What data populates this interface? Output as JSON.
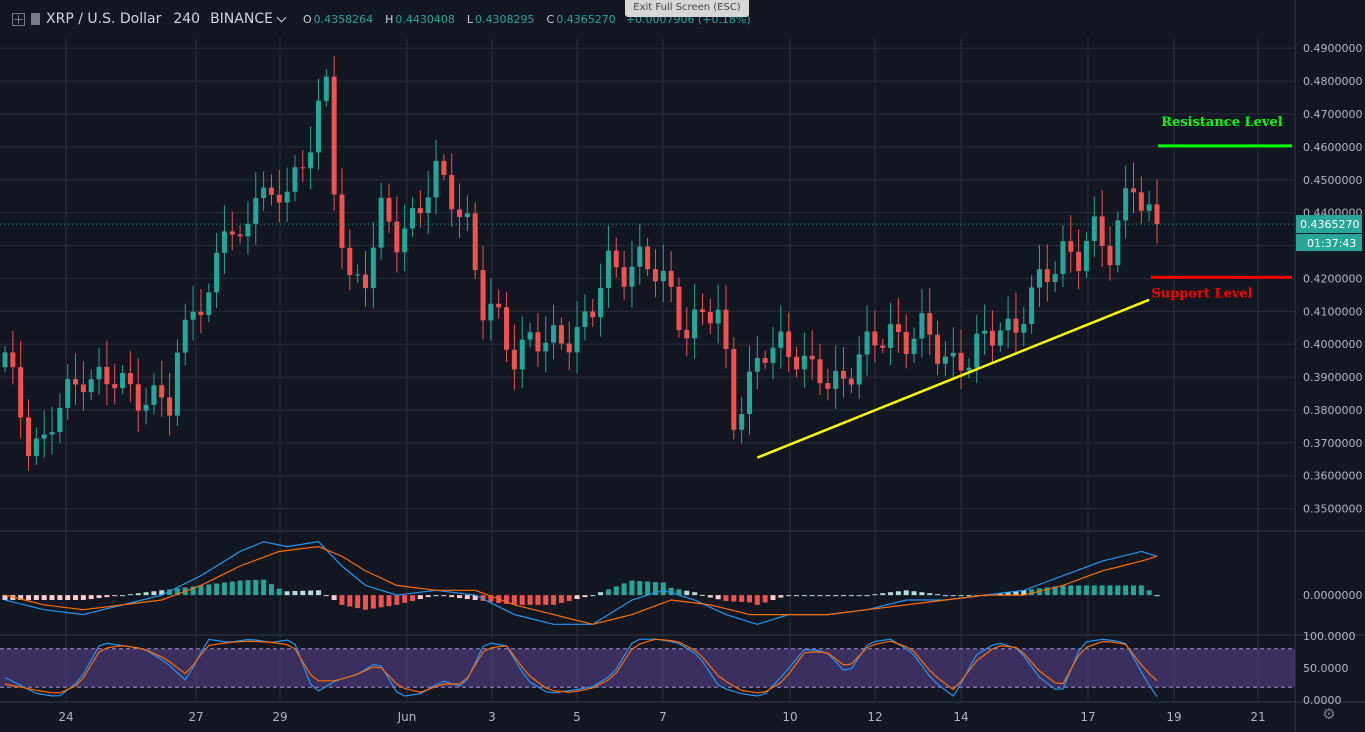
{
  "header": {
    "symbol": "XRP / U.S. Dollar",
    "interval": "240",
    "exchange": "BINANCE",
    "open_label": "O",
    "open": "0.4358264",
    "high_label": "H",
    "high": "0.4430408",
    "low_label": "L",
    "low": "0.4308295",
    "close_label": "C",
    "close": "0.4365270",
    "change": "+0.0007906 (+0.18%)"
  },
  "fullscreen_banner": "Exit Full Screen (ESC)",
  "last_price": "0.4365270",
  "countdown": "01:37:43",
  "colors": {
    "background": "#131722",
    "grid": "#2a2e39",
    "up": "#26a69a",
    "down": "#ef5350",
    "resistance": "#00ff00",
    "support": "#ff0000",
    "trendline": "#ffff00",
    "macd_line": "#2196f3",
    "signal_line": "#ff6d00",
    "stoch_band": "#7e57c2"
  },
  "icons": [
    "add-symbol-icon",
    "series-square-icon",
    "dropdown-chevron-icon",
    "settings-gear-icon"
  ],
  "chart_data": [
    {
      "type": "candlestick",
      "title": "XRP / U.S. Dollar 240 BINANCE",
      "x_ticks": [
        "24",
        "27",
        "29",
        "Jun",
        "3",
        "5",
        "7",
        "10",
        "12",
        "14",
        "17",
        "19",
        "21"
      ],
      "y_ticks": [
        "0.4900000",
        "0.4800000",
        "0.4700000",
        "0.4600000",
        "0.4500000",
        "0.4400000",
        "0.4300000",
        "0.4200000",
        "0.4100000",
        "0.4000000",
        "0.3900000",
        "0.3800000",
        "0.3700000",
        "0.3600000",
        "0.3500000"
      ],
      "ylim": [
        0.3435,
        0.4925
      ],
      "close_path": [
        [
          0,
          0.395
        ],
        [
          3,
          0.372
        ],
        [
          5,
          0.37
        ],
        [
          7,
          0.38
        ],
        [
          10,
          0.392
        ],
        [
          13,
          0.388
        ],
        [
          17,
          0.386
        ],
        [
          20,
          0.382
        ],
        [
          21,
          0.38
        ],
        [
          22,
          0.395
        ],
        [
          24,
          0.415
        ],
        [
          26,
          0.412
        ],
        [
          28,
          0.436
        ],
        [
          30,
          0.43
        ],
        [
          32,
          0.45
        ],
        [
          34,
          0.44
        ],
        [
          36,
          0.448
        ],
        [
          38,
          0.455
        ],
        [
          40,
          0.473
        ],
        [
          41,
          0.475
        ],
        [
          42,
          0.445
        ],
        [
          44,
          0.42
        ],
        [
          46,
          0.422
        ],
        [
          48,
          0.438
        ],
        [
          50,
          0.432
        ],
        [
          52,
          0.44
        ],
        [
          55,
          0.45
        ],
        [
          57,
          0.445
        ],
        [
          59,
          0.438
        ],
        [
          61,
          0.41
        ],
        [
          63,
          0.406
        ],
        [
          65,
          0.397
        ],
        [
          67,
          0.403
        ],
        [
          69,
          0.398
        ],
        [
          71,
          0.402
        ],
        [
          73,
          0.405
        ],
        [
          75,
          0.41
        ],
        [
          77,
          0.423
        ],
        [
          79,
          0.424
        ],
        [
          81,
          0.426
        ],
        [
          83,
          0.42
        ],
        [
          85,
          0.416
        ],
        [
          87,
          0.405
        ],
        [
          89,
          0.408
        ],
        [
          91,
          0.408
        ],
        [
          92,
          0.396
        ],
        [
          93,
          0.379
        ],
        [
          95,
          0.388
        ],
        [
          97,
          0.396
        ],
        [
          99,
          0.401
        ],
        [
          101,
          0.398
        ],
        [
          103,
          0.39
        ],
        [
          105,
          0.388
        ],
        [
          107,
          0.391
        ],
        [
          109,
          0.396
        ],
        [
          111,
          0.399
        ],
        [
          113,
          0.405
        ],
        [
          115,
          0.402
        ],
        [
          117,
          0.403
        ],
        [
          119,
          0.398
        ],
        [
          121,
          0.396
        ],
        [
          123,
          0.395
        ],
        [
          125,
          0.4
        ],
        [
          127,
          0.407
        ],
        [
          129,
          0.405
        ],
        [
          131,
          0.413
        ],
        [
          133,
          0.422
        ],
        [
          135,
          0.43
        ],
        [
          137,
          0.425
        ],
        [
          139,
          0.433
        ],
        [
          141,
          0.43
        ],
        [
          143,
          0.445
        ],
        [
          144,
          0.448
        ],
        [
          145,
          0.44
        ],
        [
          146,
          0.437
        ],
        [
          147,
          0.4365
        ]
      ],
      "annotations": [
        {
          "text": "Resistance Level",
          "price": 0.4603,
          "x_from": 145,
          "x_to": 162
        },
        {
          "text": "Support Level",
          "price": 0.4203,
          "x_from": 144,
          "x_to": 162
        },
        {
          "text": "",
          "kind": "trendline",
          "from": [
            96,
            0.3655
          ],
          "to": [
            146,
            0.4135
          ]
        }
      ]
    },
    {
      "type": "macd",
      "y_ticks": [
        "0.0000000"
      ],
      "macd_path": [
        [
          0,
          -0.001
        ],
        [
          5,
          -0.003
        ],
        [
          10,
          -0.004
        ],
        [
          15,
          -0.002
        ],
        [
          20,
          0.0
        ],
        [
          25,
          0.004
        ],
        [
          30,
          0.009
        ],
        [
          33,
          0.011
        ],
        [
          36,
          0.01
        ],
        [
          40,
          0.011
        ],
        [
          43,
          0.006
        ],
        [
          46,
          0.002
        ],
        [
          50,
          0.0
        ],
        [
          55,
          0.001
        ],
        [
          60,
          0.0
        ],
        [
          65,
          -0.004
        ],
        [
          70,
          -0.006
        ],
        [
          75,
          -0.006
        ],
        [
          80,
          -0.001
        ],
        [
          84,
          0.001
        ],
        [
          88,
          -0.001
        ],
        [
          92,
          -0.004
        ],
        [
          96,
          -0.006
        ],
        [
          100,
          -0.004
        ],
        [
          105,
          -0.004
        ],
        [
          110,
          -0.003
        ],
        [
          115,
          -0.001
        ],
        [
          120,
          -0.001
        ],
        [
          125,
          0.0
        ],
        [
          130,
          0.001
        ],
        [
          135,
          0.004
        ],
        [
          140,
          0.007
        ],
        [
          145,
          0.009
        ],
        [
          147,
          0.008
        ]
      ],
      "signal_path": [
        [
          0,
          0.0
        ],
        [
          5,
          -0.002
        ],
        [
          10,
          -0.003
        ],
        [
          15,
          -0.002
        ],
        [
          20,
          -0.001
        ],
        [
          25,
          0.002
        ],
        [
          30,
          0.006
        ],
        [
          35,
          0.009
        ],
        [
          40,
          0.01
        ],
        [
          43,
          0.008
        ],
        [
          46,
          0.005
        ],
        [
          50,
          0.002
        ],
        [
          55,
          0.001
        ],
        [
          60,
          0.001
        ],
        [
          65,
          -0.002
        ],
        [
          70,
          -0.004
        ],
        [
          75,
          -0.006
        ],
        [
          80,
          -0.004
        ],
        [
          85,
          -0.001
        ],
        [
          90,
          -0.002
        ],
        [
          95,
          -0.004
        ],
        [
          100,
          -0.004
        ],
        [
          105,
          -0.004
        ],
        [
          110,
          -0.003
        ],
        [
          115,
          -0.002
        ],
        [
          120,
          -0.001
        ],
        [
          125,
          0.0
        ],
        [
          130,
          0.0
        ],
        [
          135,
          0.002
        ],
        [
          140,
          0.005
        ],
        [
          145,
          0.007
        ],
        [
          147,
          0.008
        ]
      ],
      "ylim": [
        -0.008,
        0.013
      ]
    },
    {
      "type": "stochastic_rsi",
      "y_ticks": [
        "100.0000",
        "50.0000",
        "0.0000"
      ],
      "band": [
        20,
        80
      ],
      "ylim": [
        0,
        100
      ],
      "k_path": [
        [
          0,
          35
        ],
        [
          3,
          10
        ],
        [
          5,
          5
        ],
        [
          7,
          30
        ],
        [
          9,
          90
        ],
        [
          11,
          85
        ],
        [
          13,
          80
        ],
        [
          15,
          60
        ],
        [
          17,
          30
        ],
        [
          19,
          95
        ],
        [
          21,
          90
        ],
        [
          23,
          95
        ],
        [
          25,
          90
        ],
        [
          27,
          95
        ],
        [
          29,
          10
        ],
        [
          31,
          30
        ],
        [
          33,
          40
        ],
        [
          35,
          60
        ],
        [
          37,
          5
        ],
        [
          39,
          10
        ],
        [
          41,
          30
        ],
        [
          43,
          20
        ],
        [
          45,
          90
        ],
        [
          47,
          85
        ],
        [
          49,
          30
        ],
        [
          51,
          10
        ],
        [
          53,
          15
        ],
        [
          55,
          20
        ],
        [
          57,
          40
        ],
        [
          59,
          95
        ],
        [
          61,
          95
        ],
        [
          63,
          90
        ],
        [
          65,
          70
        ],
        [
          67,
          20
        ],
        [
          69,
          10
        ],
        [
          71,
          5
        ],
        [
          73,
          40
        ],
        [
          75,
          80
        ],
        [
          77,
          75
        ],
        [
          79,
          40
        ],
        [
          81,
          90
        ],
        [
          83,
          95
        ],
        [
          85,
          75
        ],
        [
          87,
          30
        ],
        [
          89,
          5
        ],
        [
          91,
          70
        ],
        [
          93,
          90
        ],
        [
          95,
          80
        ],
        [
          97,
          35
        ],
        [
          99,
          10
        ],
        [
          101,
          90
        ],
        [
          103,
          95
        ],
        [
          105,
          90
        ],
        [
          107,
          30
        ],
        [
          108,
          5
        ]
      ],
      "d_path": [
        [
          0,
          25
        ],
        [
          3,
          15
        ],
        [
          5,
          10
        ],
        [
          7,
          25
        ],
        [
          9,
          80
        ],
        [
          11,
          85
        ],
        [
          13,
          80
        ],
        [
          15,
          65
        ],
        [
          17,
          40
        ],
        [
          19,
          85
        ],
        [
          21,
          90
        ],
        [
          23,
          92
        ],
        [
          25,
          90
        ],
        [
          27,
          85
        ],
        [
          29,
          30
        ],
        [
          31,
          30
        ],
        [
          33,
          40
        ],
        [
          35,
          55
        ],
        [
          37,
          20
        ],
        [
          39,
          12
        ],
        [
          41,
          25
        ],
        [
          43,
          25
        ],
        [
          45,
          80
        ],
        [
          47,
          85
        ],
        [
          49,
          40
        ],
        [
          51,
          15
        ],
        [
          53,
          12
        ],
        [
          55,
          18
        ],
        [
          57,
          35
        ],
        [
          59,
          85
        ],
        [
          61,
          95
        ],
        [
          63,
          92
        ],
        [
          65,
          75
        ],
        [
          67,
          35
        ],
        [
          69,
          15
        ],
        [
          71,
          10
        ],
        [
          73,
          30
        ],
        [
          75,
          75
        ],
        [
          77,
          75
        ],
        [
          79,
          50
        ],
        [
          81,
          85
        ],
        [
          83,
          92
        ],
        [
          85,
          80
        ],
        [
          87,
          40
        ],
        [
          89,
          15
        ],
        [
          91,
          60
        ],
        [
          93,
          85
        ],
        [
          95,
          82
        ],
        [
          97,
          45
        ],
        [
          99,
          20
        ],
        [
          101,
          80
        ],
        [
          103,
          92
        ],
        [
          105,
          88
        ],
        [
          107,
          45
        ],
        [
          108,
          30
        ]
      ]
    }
  ]
}
